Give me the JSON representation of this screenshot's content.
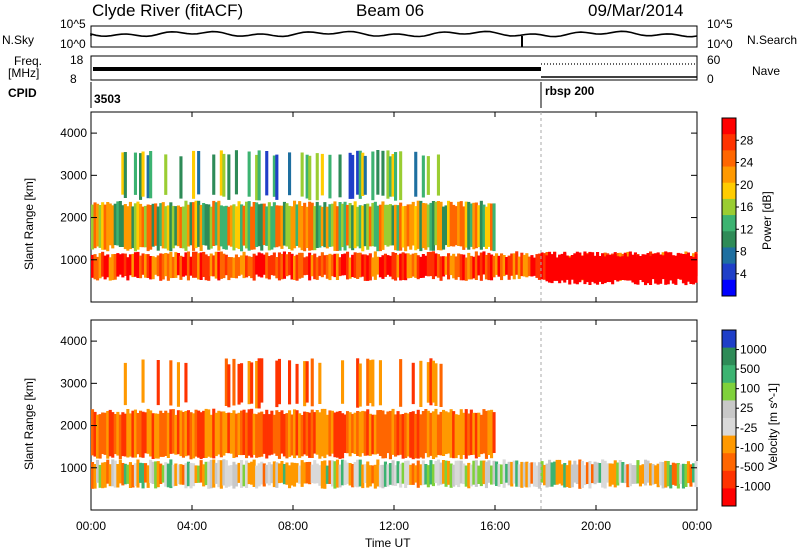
{
  "header": {
    "station": "Clyde River (fitACF)",
    "beam": "Beam 06",
    "date": "09/Mar/2014"
  },
  "side_labels": {
    "nsky": "N.Sky",
    "nsearch": "N.Search",
    "freq_top": "Freq.",
    "freq_unit": "[MHz]",
    "nave": "Nave",
    "cpid": "CPID",
    "nsky_tick_hi": "10^5",
    "nsky_tick_lo": "10^0",
    "nsearch_tick_hi": "10^5",
    "nsearch_tick_lo": "10^0",
    "freq_tick_hi": "18",
    "freq_tick_lo": "8",
    "nave_tick_hi": "60",
    "nave_tick_lo": "0"
  },
  "cpid": {
    "first": "3503",
    "second": "rbsp 200"
  },
  "chart_data": [
    {
      "type": "heatmap",
      "title": "",
      "ylabel": "Slant Range [km]",
      "xlabel": "",
      "ylim": [
        0,
        4500
      ],
      "yticks": [
        "1000",
        "2000",
        "3000",
        "4000"
      ],
      "colorbar": {
        "label": "Power [dB]",
        "ticks": [
          "28",
          "24",
          "20",
          "16",
          "12",
          "8",
          "4"
        ],
        "colors": [
          "#ff0000",
          "#ff3300",
          "#ff6600",
          "#ff9900",
          "#ffcc00",
          "#9acd32",
          "#3cb371",
          "#2e8b57",
          "#1e6fa0",
          "#1f3fc8",
          "#0000ff"
        ]
      },
      "bands": [
        {
          "hours": [
            0,
            24
          ],
          "range_km": [
            500,
            1200
          ],
          "level": "high"
        },
        {
          "hours": [
            0,
            16
          ],
          "range_km": [
            1200,
            2400
          ],
          "level": "medium"
        },
        {
          "hours": [
            1,
            14
          ],
          "range_km": [
            2400,
            3600
          ],
          "level": "low"
        },
        {
          "hours": [
            18,
            24
          ],
          "range_km": [
            400,
            1200
          ],
          "level": "very-high"
        }
      ]
    },
    {
      "type": "heatmap",
      "title": "",
      "ylabel": "Slant Range [km]",
      "xlabel": "Time UT",
      "ylim": [
        0,
        4500
      ],
      "yticks": [
        "1000",
        "2000",
        "3000",
        "4000"
      ],
      "xticks": [
        "00:00",
        "04:00",
        "08:00",
        "12:00",
        "16:00",
        "20:00",
        "00:00"
      ],
      "colorbar": {
        "label": "Velocity [m s^-1]",
        "ticks": [
          "1000",
          "500",
          "100",
          "25",
          "-25",
          "-100",
          "-500",
          "-1000"
        ],
        "colors": [
          "#1f3fc8",
          "#2e8b57",
          "#3cb371",
          "#7fd13b",
          "#c8c8c8",
          "#d9d9d9",
          "#ff9900",
          "#ff6600",
          "#ff3300",
          "#ff0000"
        ]
      },
      "bands": [
        {
          "hours": [
            0,
            24
          ],
          "range_km": [
            500,
            1200
          ],
          "level": "mixed"
        },
        {
          "hours": [
            0,
            16
          ],
          "range_km": [
            1200,
            2400
          ],
          "level": "negative"
        },
        {
          "hours": [
            1,
            14
          ],
          "range_km": [
            2400,
            3600
          ],
          "level": "negative-sparse"
        }
      ]
    }
  ]
}
